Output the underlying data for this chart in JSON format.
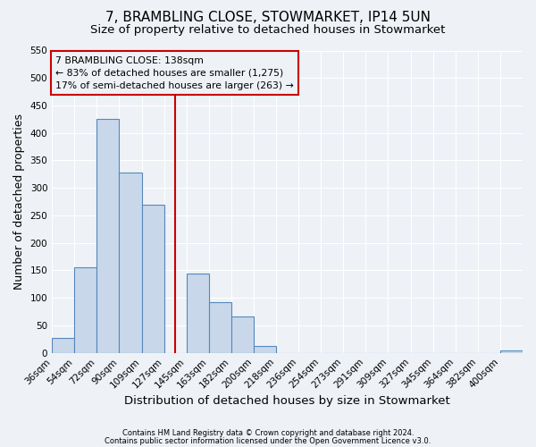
{
  "title": "7, BRAMBLING CLOSE, STOWMARKET, IP14 5UN",
  "subtitle": "Size of property relative to detached houses in Stowmarket",
  "xlabel": "Distribution of detached houses by size in Stowmarket",
  "ylabel": "Number of detached properties",
  "bin_labels": [
    "36sqm",
    "54sqm",
    "72sqm",
    "90sqm",
    "109sqm",
    "127sqm",
    "145sqm",
    "163sqm",
    "182sqm",
    "200sqm",
    "218sqm",
    "236sqm",
    "254sqm",
    "273sqm",
    "291sqm",
    "309sqm",
    "327sqm",
    "345sqm",
    "364sqm",
    "382sqm",
    "400sqm"
  ],
  "bar_heights": [
    28,
    155,
    425,
    328,
    270,
    0,
    145,
    92,
    67,
    12,
    0,
    0,
    0,
    0,
    0,
    0,
    0,
    0,
    0,
    0,
    5
  ],
  "bar_color": "#c8d8ea",
  "bar_edge_color": "#5588bb",
  "ylim": [
    0,
    550
  ],
  "yticks": [
    0,
    50,
    100,
    150,
    200,
    250,
    300,
    350,
    400,
    450,
    500,
    550
  ],
  "vline_color": "#cc0000",
  "annotation_title": "7 BRAMBLING CLOSE: 138sqm",
  "annotation_line1": "← 83% of detached houses are smaller (1,275)",
  "annotation_line2": "17% of semi-detached houses are larger (263) →",
  "annotation_box_color": "#cc0000",
  "footnote1": "Contains HM Land Registry data © Crown copyright and database right 2024.",
  "footnote2": "Contains public sector information licensed under the Open Government Licence v3.0.",
  "bg_color": "#eef2f7",
  "grid_color": "#ffffff",
  "title_fontsize": 11,
  "subtitle_fontsize": 9.5,
  "xlabel_fontsize": 9.5,
  "ylabel_fontsize": 9,
  "tick_fontsize": 7.5,
  "n_bins": 20,
  "vline_bin": 5.5
}
